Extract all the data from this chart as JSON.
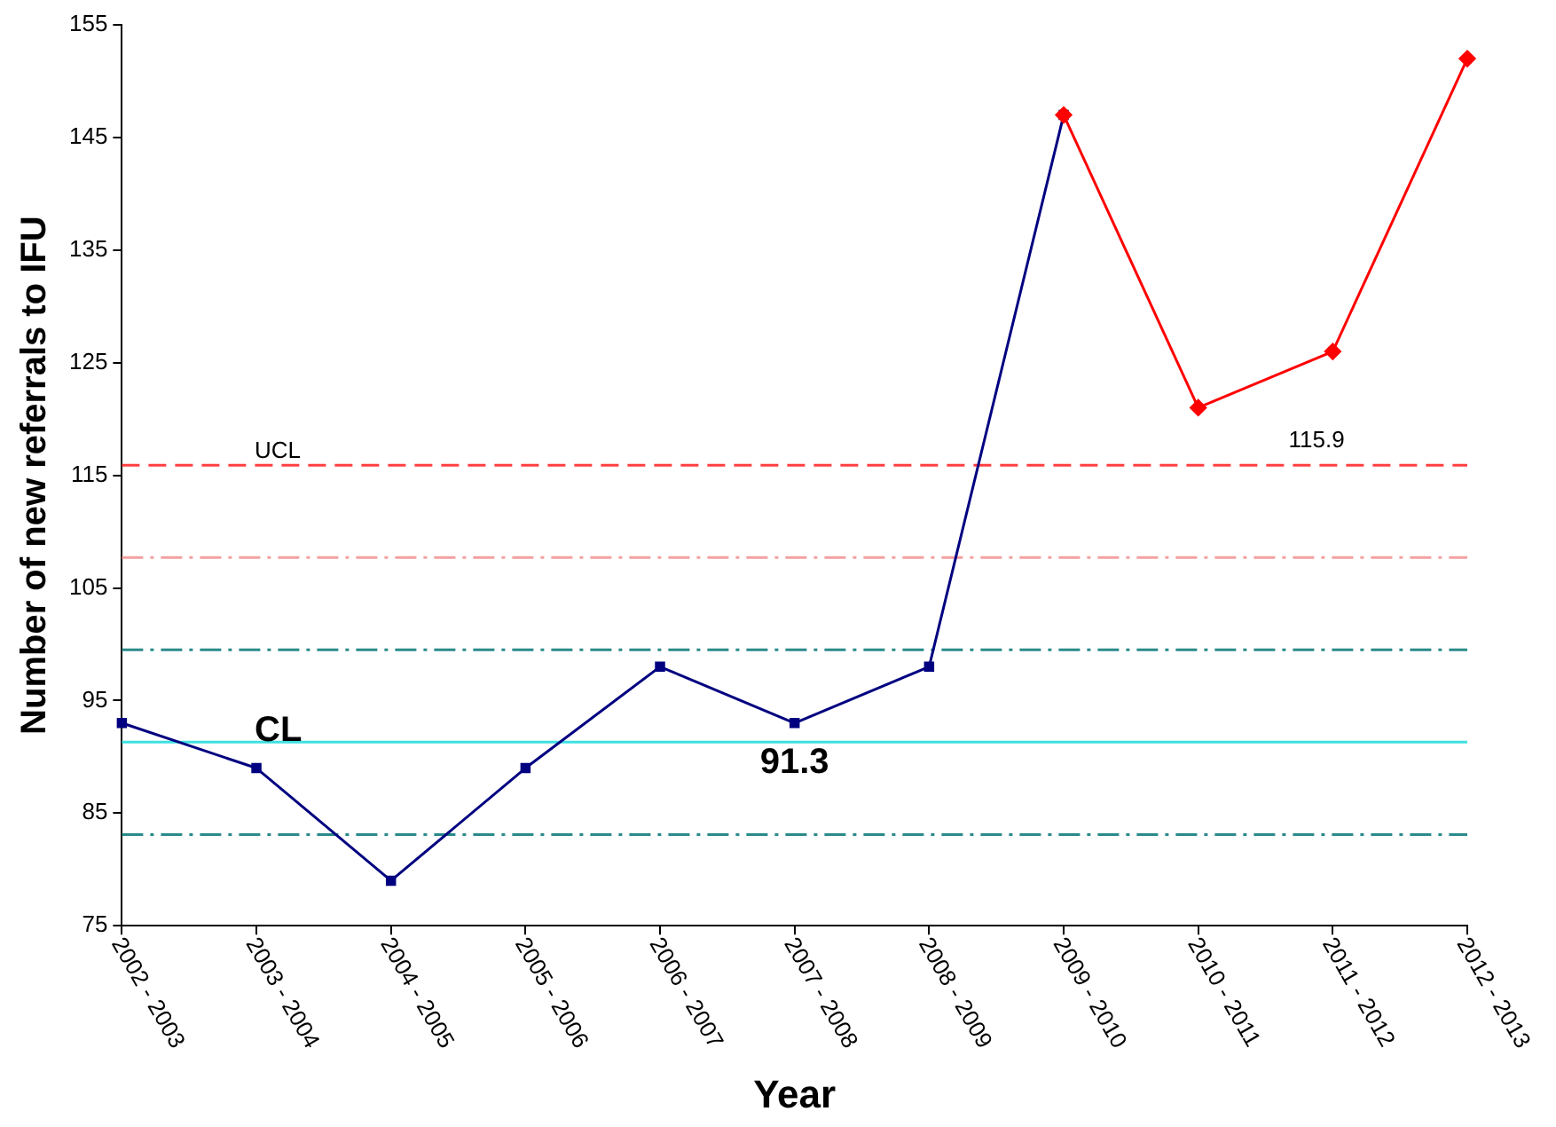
{
  "chart_data": {
    "type": "line",
    "xlabel": "Year",
    "ylabel": "Number of new referrals to IFU",
    "categories": [
      "2002 - 2003",
      "2003 - 2004",
      "2004 - 2005",
      "2005 - 2006",
      "2006 - 2007",
      "2007 - 2008",
      "2008 - 2009",
      "2009 - 2010",
      "2010 - 2011",
      "2011 - 2012",
      "2012 - 2013"
    ],
    "series": [
      {
        "color": "#000080",
        "marker": "square",
        "values": [
          93,
          89,
          79,
          89,
          98,
          93,
          98,
          147,
          null,
          null,
          null
        ]
      },
      {
        "color": "#ff0000",
        "marker": "diamond",
        "values": [
          null,
          null,
          null,
          null,
          null,
          null,
          null,
          147,
          121,
          126,
          152
        ]
      }
    ],
    "ylim": [
      75,
      155
    ],
    "yticks": [
      75,
      85,
      95,
      105,
      115,
      125,
      135,
      145,
      155
    ],
    "grid": false,
    "legend": false,
    "ref_lines": [
      {
        "axis": "y",
        "value": 115.9,
        "label": "UCL",
        "color": "#ff4040",
        "line_style": "dashed"
      },
      {
        "axis": "y",
        "value": 107.7,
        "label": null,
        "color": "#f4a0a0",
        "line_style": "dashdot"
      },
      {
        "axis": "y",
        "value": 99.5,
        "label": null,
        "color": "#2a8a8a",
        "line_style": "dashdot"
      },
      {
        "axis": "y",
        "value": 91.3,
        "label": "CL",
        "color": "#40e0e0",
        "line_style": "solid"
      },
      {
        "axis": "y",
        "value": 83.1,
        "label": null,
        "color": "#2a8a8a",
        "line_style": "dashdot"
      }
    ],
    "annotations": [
      "91.3",
      "115.9"
    ]
  }
}
